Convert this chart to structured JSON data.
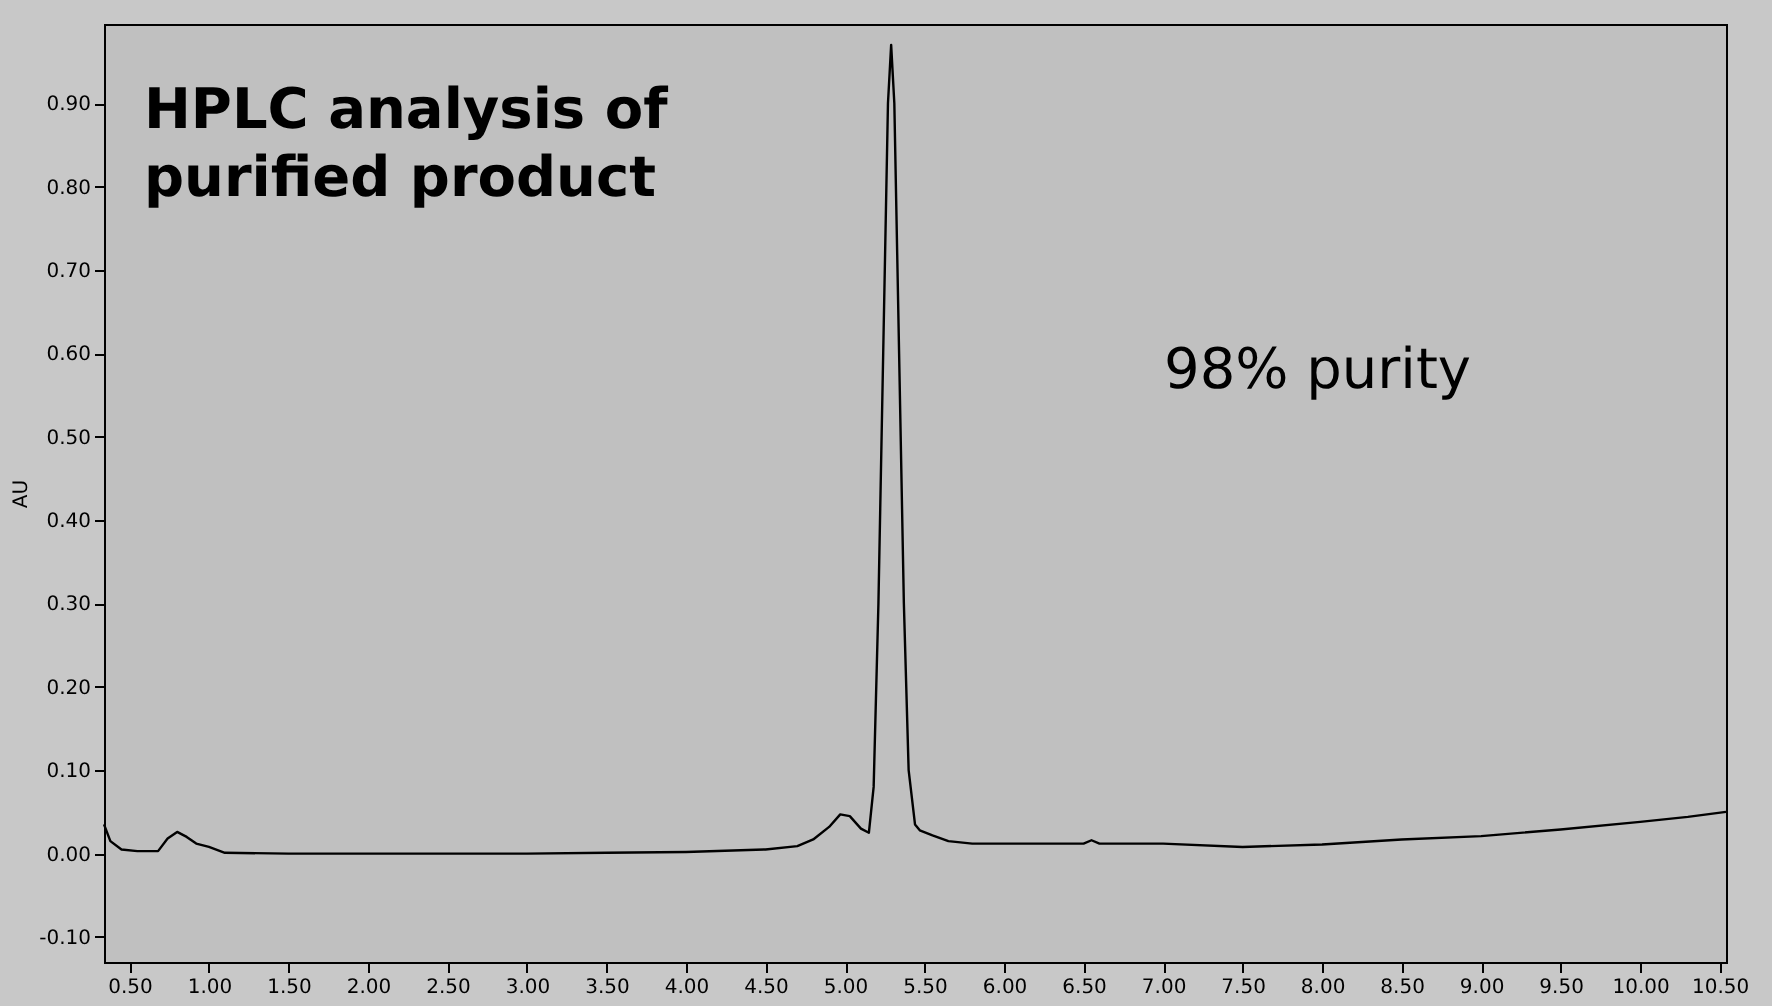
{
  "chart_data": {
    "type": "line",
    "ylabel": "AU",
    "annotations": [
      "HPLC analysis of\npurified product",
      "98% purity"
    ],
    "x": [
      0.34,
      0.38,
      0.45,
      0.55,
      0.68,
      0.74,
      0.8,
      0.86,
      0.92,
      1.0,
      1.1,
      1.5,
      2.0,
      2.5,
      3.0,
      3.5,
      4.0,
      4.5,
      4.7,
      4.8,
      4.9,
      4.97,
      5.03,
      5.1,
      5.15,
      5.18,
      5.21,
      5.24,
      5.27,
      5.29,
      5.31,
      5.34,
      5.37,
      5.4,
      5.44,
      5.47,
      5.55,
      5.65,
      5.8,
      6.0,
      6.5,
      6.55,
      6.6,
      7.0,
      7.5,
      8.0,
      8.5,
      9.0,
      9.5,
      10.0,
      10.3,
      10.54
    ],
    "series": [
      {
        "color": "#000000",
        "values": [
          0.035,
          0.015,
          0.005,
          0.003,
          0.003,
          0.018,
          0.026,
          0.02,
          0.012,
          0.008,
          0.001,
          0.0,
          0.0,
          0.0,
          0.0,
          0.001,
          0.002,
          0.005,
          0.009,
          0.017,
          0.032,
          0.047,
          0.045,
          0.03,
          0.025,
          0.08,
          0.3,
          0.6,
          0.9,
          0.97,
          0.9,
          0.6,
          0.3,
          0.1,
          0.035,
          0.028,
          0.022,
          0.015,
          0.012,
          0.012,
          0.012,
          0.016,
          0.012,
          0.012,
          0.008,
          0.011,
          0.017,
          0.021,
          0.029,
          0.038,
          0.044,
          0.05
        ]
      }
    ],
    "xlim": [
      0.34,
      10.54
    ],
    "ylim": [
      -0.13,
      0.995
    ],
    "xticks": [
      {
        "value": 0.5,
        "label": "0.50"
      },
      {
        "value": 1.0,
        "label": "1.00"
      },
      {
        "value": 1.5,
        "label": "1.50"
      },
      {
        "value": 2.0,
        "label": "2.00"
      },
      {
        "value": 2.5,
        "label": "2.50"
      },
      {
        "value": 3.0,
        "label": "3.00"
      },
      {
        "value": 3.5,
        "label": "3.50"
      },
      {
        "value": 4.0,
        "label": "4.00"
      },
      {
        "value": 4.5,
        "label": "4.50"
      },
      {
        "value": 5.0,
        "label": "5.00"
      },
      {
        "value": 5.5,
        "label": "5.50"
      },
      {
        "value": 6.0,
        "label": "6.00"
      },
      {
        "value": 6.5,
        "label": "6.50"
      },
      {
        "value": 7.0,
        "label": "7.00"
      },
      {
        "value": 7.5,
        "label": "7.50"
      },
      {
        "value": 8.0,
        "label": "8.00"
      },
      {
        "value": 8.5,
        "label": "8.50"
      },
      {
        "value": 9.0,
        "label": "9.00"
      },
      {
        "value": 9.5,
        "label": "9.50"
      },
      {
        "value": 10.0,
        "label": "10.00"
      },
      {
        "value": 10.5,
        "label": "10.50"
      }
    ],
    "yticks": [
      {
        "value": -0.1,
        "label": "-0.10"
      },
      {
        "value": 0.0,
        "label": "0.00"
      },
      {
        "value": 0.1,
        "label": "0.10"
      },
      {
        "value": 0.2,
        "label": "0.20"
      },
      {
        "value": 0.3,
        "label": "0.30"
      },
      {
        "value": 0.4,
        "label": "0.40"
      },
      {
        "value": 0.5,
        "label": "0.50"
      },
      {
        "value": 0.6,
        "label": "0.60"
      },
      {
        "value": 0.7,
        "label": "0.70"
      },
      {
        "value": 0.8,
        "label": "0.80"
      },
      {
        "value": 0.9,
        "label": "0.90"
      }
    ],
    "grid": false,
    "marker": "none",
    "line_style": "solid"
  }
}
